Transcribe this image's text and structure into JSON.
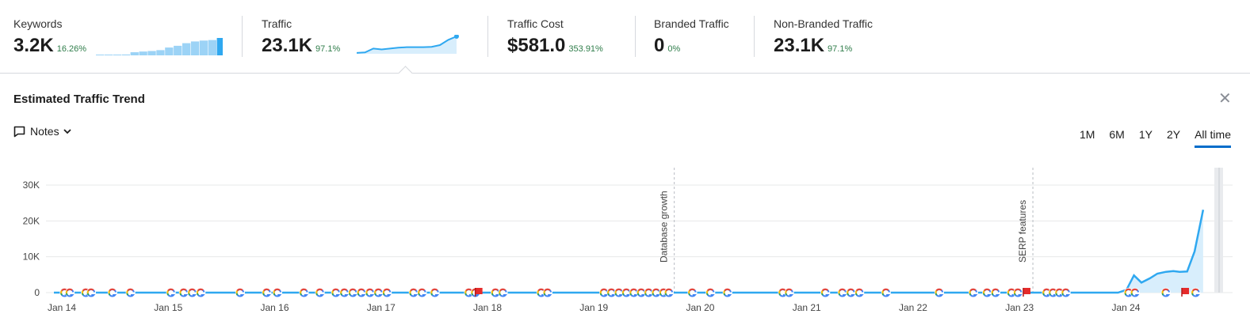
{
  "metrics": [
    {
      "label": "Keywords",
      "value": "3.2K",
      "change": "16.26%"
    },
    {
      "label": "Traffic",
      "value": "23.1K",
      "change": "97.1%"
    },
    {
      "label": "Traffic Cost",
      "value": "$581.0",
      "change": "353.91%"
    },
    {
      "label": "Branded Traffic",
      "value": "0",
      "change": "0%"
    },
    {
      "label": "Non-Branded Traffic",
      "value": "23.1K",
      "change": "97.1%"
    }
  ],
  "keywords_sparkline": [
    0.02,
    0.03,
    0.02,
    0.05,
    0.18,
    0.22,
    0.25,
    0.3,
    0.45,
    0.55,
    0.7,
    0.8,
    0.85,
    0.88,
    1.0
  ],
  "traffic_sparkline": [
    0.05,
    0.08,
    0.3,
    0.25,
    0.3,
    0.35,
    0.38,
    0.38,
    0.38,
    0.4,
    0.5,
    0.8,
    1.0
  ],
  "panel": {
    "title": "Estimated Traffic Trend",
    "close_icon": "close-icon",
    "notes_label": "Notes"
  },
  "ranges": [
    {
      "label": "1M",
      "active": false
    },
    {
      "label": "6M",
      "active": false
    },
    {
      "label": "1Y",
      "active": false
    },
    {
      "label": "2Y",
      "active": false
    },
    {
      "label": "All time",
      "active": true
    }
  ],
  "colors": {
    "accent": "#006dca",
    "line": "#2fa8f0",
    "fill": "#d8eefc",
    "positive": "#2f7d4a",
    "flag": "#e52b2b"
  },
  "chart_data": {
    "type": "line",
    "title": "",
    "ylim": [
      0,
      30000
    ],
    "yticks": [
      0,
      10000,
      20000,
      30000
    ],
    "ytick_labels": [
      "0",
      "10K",
      "20K",
      "30K"
    ],
    "xticks": [
      "Jan 14",
      "Jan 15",
      "Jan 16",
      "Jan 17",
      "Jan 18",
      "Jan 19",
      "Jan 20",
      "Jan 21",
      "Jan 22",
      "Jan 23",
      "Jan 24"
    ],
    "xlim": [
      2014.0,
      2024.95
    ],
    "series": [
      {
        "points": [
          [
            2014.0,
            0
          ],
          [
            2023.0,
            0
          ],
          [
            2024.0,
            0
          ],
          [
            2024.08,
            800
          ],
          [
            2024.15,
            4800
          ],
          [
            2024.22,
            2800
          ],
          [
            2024.3,
            4000
          ],
          [
            2024.37,
            5300
          ],
          [
            2024.45,
            5800
          ],
          [
            2024.52,
            6000
          ],
          [
            2024.58,
            5800
          ],
          [
            2024.65,
            5900
          ],
          [
            2024.72,
            11500
          ],
          [
            2024.8,
            23100
          ]
        ]
      }
    ],
    "annotations": [
      {
        "x": 2019.83,
        "text": "Database growth"
      },
      {
        "x": 2023.2,
        "text": "SERP features"
      }
    ],
    "google_markers": [
      2014.1,
      2014.15,
      2014.3,
      2014.35,
      2014.55,
      2014.72,
      2015.1,
      2015.22,
      2015.3,
      2015.38,
      2015.75,
      2016.0,
      2016.1,
      2016.35,
      2016.5,
      2016.65,
      2016.73,
      2016.81,
      2016.89,
      2016.97,
      2017.05,
      2017.13,
      2017.38,
      2017.46,
      2017.58,
      2017.9,
      2017.96,
      2018.15,
      2018.22,
      2018.58,
      2018.64,
      2019.17,
      2019.24,
      2019.31,
      2019.38,
      2019.45,
      2019.52,
      2019.59,
      2019.66,
      2019.73,
      2019.78,
      2020.0,
      2020.17,
      2020.33,
      2020.85,
      2020.91,
      2021.25,
      2021.41,
      2021.49,
      2021.57,
      2021.82,
      2022.32,
      2022.64,
      2022.77,
      2022.85,
      2023.0,
      2023.06,
      2023.33,
      2023.39,
      2023.45,
      2023.51,
      2024.1,
      2024.16,
      2024.45,
      2024.73
    ],
    "flag_markers": [
      2017.99,
      2023.14,
      2024.63
    ]
  }
}
